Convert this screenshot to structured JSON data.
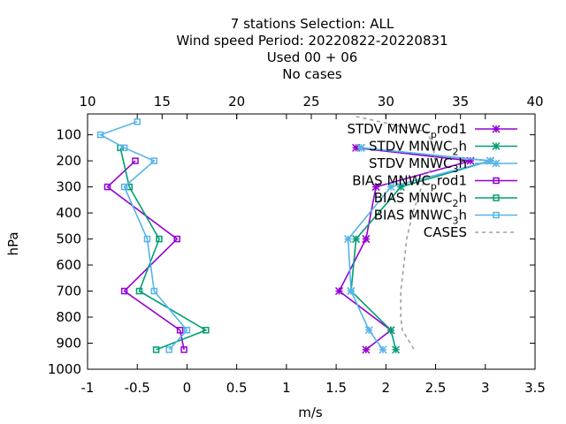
{
  "chart_data": {
    "type": "line",
    "title_lines": [
      "7 stations Selection: ALL",
      "Wind speed  Period: 20220822-20220831",
      "Used  00 + 06",
      "No cases"
    ],
    "xlabel": "m/s",
    "ylabel": "hPa",
    "xlim": [
      -1,
      3.5
    ],
    "ylim": [
      1000,
      20
    ],
    "x_ticks": [
      "-1",
      "-0.5",
      "0",
      "0.5",
      "1",
      "1.5",
      "2",
      "2.5",
      "3",
      "3.5"
    ],
    "x_tick_values": [
      -1,
      -0.5,
      0,
      0.5,
      1,
      1.5,
      2,
      2.5,
      3,
      3.5
    ],
    "x2lim": [
      10,
      40
    ],
    "x2_ticks": [
      "10",
      "15",
      "20",
      "25",
      "30",
      "35",
      "40"
    ],
    "x2_tick_values": [
      10,
      15,
      20,
      25,
      30,
      35,
      40
    ],
    "y_ticks": [
      "100",
      "200",
      "300",
      "400",
      "500",
      "600",
      "700",
      "800",
      "900",
      "1000"
    ],
    "y_tick_values": [
      100,
      200,
      300,
      400,
      500,
      600,
      700,
      800,
      900,
      1000
    ],
    "legend_position": "top-right",
    "series": [
      {
        "name": "STDV MNWC_prod1",
        "name_parts": [
          "STDV MNWC",
          "p",
          "rod1"
        ],
        "color": "#9400d3",
        "marker": "star",
        "points": [
          {
            "x": 1.7,
            "y": 150
          },
          {
            "x": 2.85,
            "y": 200
          },
          {
            "x": 1.9,
            "y": 300
          },
          {
            "x": 1.8,
            "y": 500
          },
          {
            "x": 1.53,
            "y": 700
          },
          {
            "x": 2.05,
            "y": 850
          },
          {
            "x": 1.8,
            "y": 925
          }
        ]
      },
      {
        "name": "STDV MNWC_2h",
        "name_parts": [
          "STDV MNWC",
          "2",
          "h"
        ],
        "color": "#009e73",
        "marker": "star",
        "points": [
          {
            "x": 1.75,
            "y": 150
          },
          {
            "x": 3.05,
            "y": 200
          },
          {
            "x": 2.15,
            "y": 300
          },
          {
            "x": 1.7,
            "y": 500
          },
          {
            "x": 1.65,
            "y": 700
          },
          {
            "x": 2.05,
            "y": 850
          },
          {
            "x": 2.1,
            "y": 925
          }
        ]
      },
      {
        "name": "STDV MNWC_3h",
        "name_parts": [
          "STDV MNWC",
          "3",
          "h"
        ],
        "color": "#56b4e9",
        "marker": "star",
        "points": [
          {
            "x": 1.75,
            "y": 150
          },
          {
            "x": 3.05,
            "y": 200
          },
          {
            "x": 2.05,
            "y": 300
          },
          {
            "x": 1.62,
            "y": 500
          },
          {
            "x": 1.65,
            "y": 700
          },
          {
            "x": 1.83,
            "y": 850
          },
          {
            "x": 1.97,
            "y": 925
          }
        ]
      },
      {
        "name": "BIAS MNWC_prod1",
        "name_parts": [
          "BIAS MNWC",
          "p",
          "rod1"
        ],
        "color": "#9400d3",
        "marker": "square",
        "points": [
          {
            "x": -0.52,
            "y": 200
          },
          {
            "x": -0.8,
            "y": 300
          },
          {
            "x": -0.1,
            "y": 500
          },
          {
            "x": -0.63,
            "y": 700
          },
          {
            "x": -0.07,
            "y": 850
          },
          {
            "x": -0.03,
            "y": 925
          }
        ]
      },
      {
        "name": "BIAS MNWC_2h",
        "name_parts": [
          "BIAS MNWC",
          "2",
          "h"
        ],
        "color": "#009e73",
        "marker": "square",
        "points": [
          {
            "x": -0.67,
            "y": 150
          },
          {
            "x": -0.58,
            "y": 300
          },
          {
            "x": -0.28,
            "y": 500
          },
          {
            "x": -0.48,
            "y": 700
          },
          {
            "x": 0.19,
            "y": 850
          },
          {
            "x": -0.31,
            "y": 925
          }
        ]
      },
      {
        "name": "BIAS MNWC_3h",
        "name_parts": [
          "BIAS MNWC",
          "3",
          "h"
        ],
        "color": "#56b4e9",
        "marker": "square",
        "points": [
          {
            "x": -0.5,
            "y": 50
          },
          {
            "x": -0.87,
            "y": 100
          },
          {
            "x": -0.63,
            "y": 150
          },
          {
            "x": -0.33,
            "y": 200
          },
          {
            "x": -0.63,
            "y": 300
          },
          {
            "x": -0.4,
            "y": 500
          },
          {
            "x": -0.33,
            "y": 700
          },
          {
            "x": 0.0,
            "y": 850
          },
          {
            "x": -0.18,
            "y": 925
          }
        ]
      },
      {
        "name": "CASES",
        "name_parts": [
          "CASES",
          "",
          ""
        ],
        "color": "#a0a0a0",
        "marker": "none",
        "dash": true,
        "axis": "x2",
        "points": [
          {
            "x": 28.0,
            "y": 30
          },
          {
            "x": 32.8,
            "y": 90
          },
          {
            "x": 33.0,
            "y": 120
          },
          {
            "x": 33.2,
            "y": 150
          },
          {
            "x": 33.3,
            "y": 200
          },
          {
            "x": 32.4,
            "y": 300
          },
          {
            "x": 31.8,
            "y": 400
          },
          {
            "x": 31.4,
            "y": 500
          },
          {
            "x": 31.2,
            "y": 600
          },
          {
            "x": 31.0,
            "y": 700
          },
          {
            "x": 31.0,
            "y": 800
          },
          {
            "x": 31.1,
            "y": 850
          },
          {
            "x": 31.9,
            "y": 925
          }
        ]
      }
    ]
  }
}
